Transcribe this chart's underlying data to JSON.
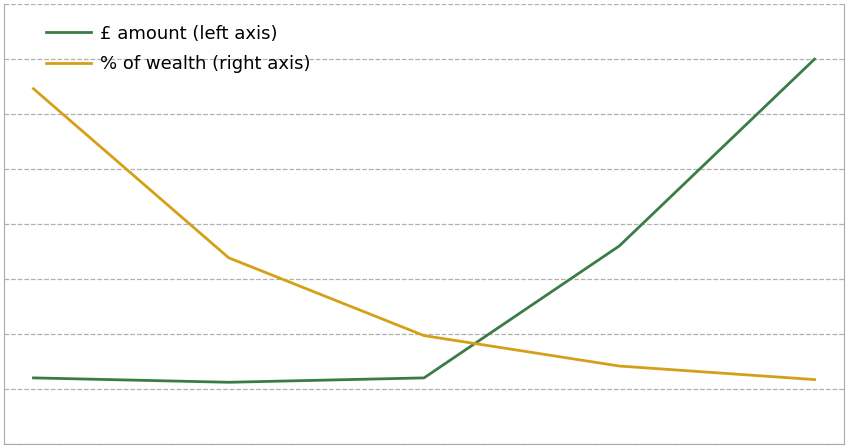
{
  "x": [
    1,
    2,
    3,
    4,
    5
  ],
  "green_values": [
    3000,
    2800,
    3000,
    9000,
    17500
  ],
  "orange_values": [
    10.5,
    5.5,
    3.2,
    2.3,
    1.9
  ],
  "green_color": "#3a7d44",
  "orange_color": "#d4a017",
  "green_label": "£ amount (left axis)",
  "orange_label": "% of wealth (right axis)",
  "left_ylim": [
    0,
    20000
  ],
  "right_ylim": [
    0,
    13
  ],
  "grid_color": "#b0b0b0",
  "background_color": "#ffffff",
  "line_width": 2.0,
  "legend_fontsize": 13,
  "grid_linestyle": "--",
  "grid_linewidth": 0.9,
  "n_gridlines": 9
}
